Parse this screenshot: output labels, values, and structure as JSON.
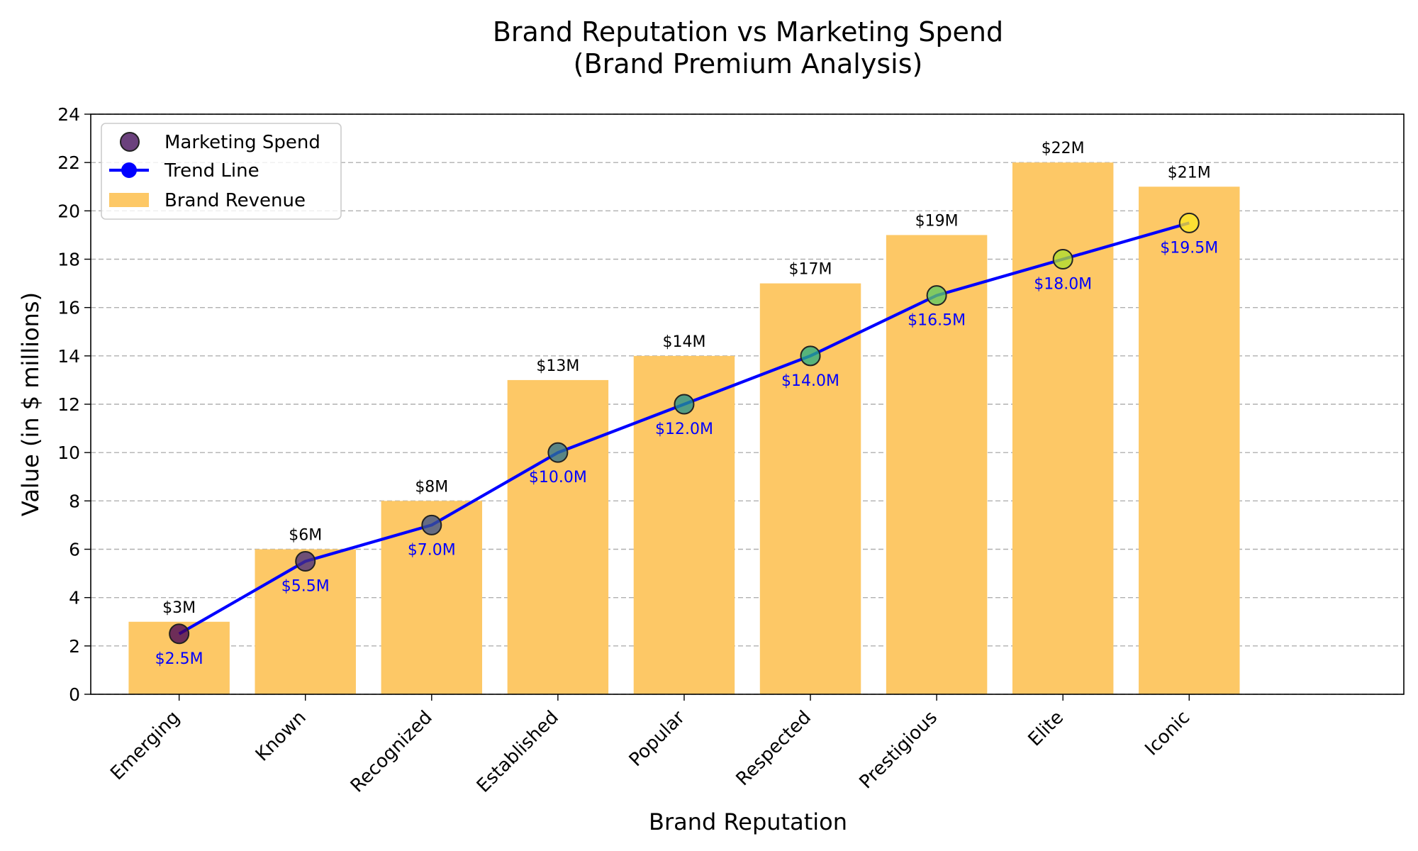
{
  "chart_data": {
    "type": "bar",
    "title": "Brand Reputation vs Marketing Spend",
    "subtitle": "(Brand Premium Analysis)",
    "xlabel": "Brand Reputation",
    "ylabel": "Value (in $ millions)",
    "ylim": [
      0,
      24
    ],
    "yticks": [
      "0",
      "2",
      "4",
      "6",
      "8",
      "10",
      "12",
      "14",
      "16",
      "18",
      "20",
      "22",
      "24"
    ],
    "grid": "horizontal dashed",
    "legend_position": "top-left",
    "categories": [
      "Emerging",
      "Known",
      "Recognized",
      "Established",
      "Popular",
      "Respected",
      "Prestigious",
      "Elite",
      "Iconic"
    ],
    "series": [
      {
        "name": "Brand Revenue",
        "type": "bar",
        "color": "#FDC866",
        "values": [
          3,
          6,
          8,
          13,
          14,
          17,
          19,
          22,
          21
        ],
        "labels": [
          "$3M",
          "$6M",
          "$8M",
          "$13M",
          "$14M",
          "$17M",
          "$19M",
          "$22M",
          "$21M"
        ]
      },
      {
        "name": "Marketing Spend",
        "type": "scatter",
        "values": [
          2.5,
          5.5,
          7.0,
          10.0,
          12.0,
          14.0,
          16.5,
          18.0,
          19.5
        ],
        "colors": [
          "#440154",
          "#472D7B",
          "#3B528B",
          "#2C728E",
          "#21918C",
          "#28AE80",
          "#5EC962",
          "#ADDC30",
          "#FDE725"
        ],
        "labels": [
          "$2.5M",
          "$5.5M",
          "$7.0M",
          "$10.0M",
          "$12.0M",
          "$14.0M",
          "$16.5M",
          "$18.0M",
          "$19.5M"
        ]
      },
      {
        "name": "Trend Line",
        "type": "line",
        "color": "#0000FF",
        "values": [
          2.5,
          5.5,
          7.0,
          10.0,
          12.0,
          14.0,
          16.5,
          18.0,
          19.5
        ]
      }
    ],
    "legend": [
      {
        "label": "Marketing Spend",
        "symbol": "marker",
        "color": "#5B2C6F"
      },
      {
        "label": "Trend Line",
        "symbol": "line",
        "color": "#0000FF"
      },
      {
        "label": "Brand Revenue",
        "symbol": "bar",
        "color": "#FDC866"
      }
    ]
  }
}
